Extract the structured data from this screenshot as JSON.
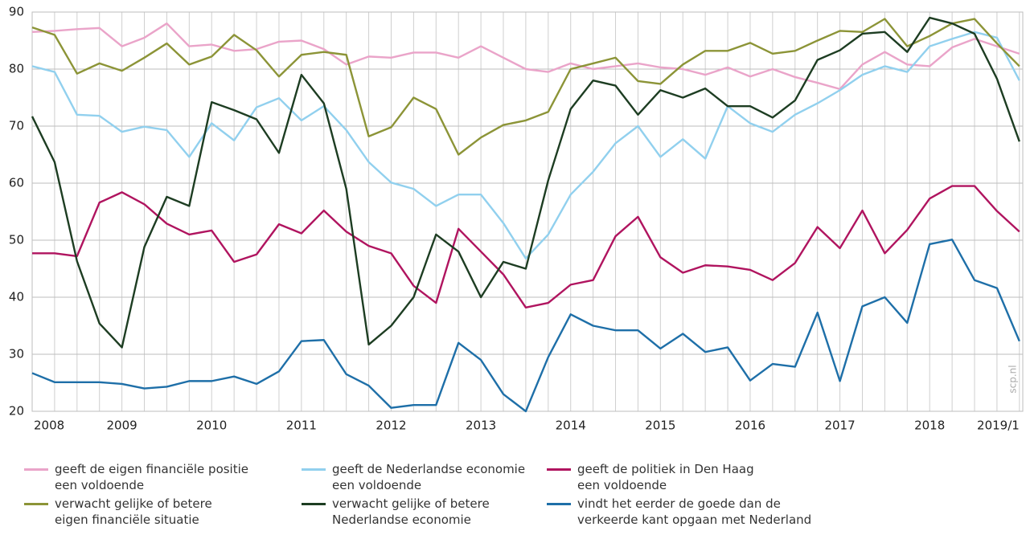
{
  "chart_data": {
    "type": "line",
    "categories": [
      "2008",
      null,
      null,
      null,
      "2009",
      null,
      null,
      null,
      "2010",
      null,
      null,
      null,
      "2011",
      null,
      null,
      null,
      "2012",
      null,
      null,
      null,
      "2013",
      null,
      null,
      null,
      "2014",
      null,
      null,
      null,
      "2015",
      null,
      null,
      null,
      "2016",
      null,
      null,
      null,
      "2017",
      null,
      null,
      null,
      "2018",
      null,
      null,
      null,
      "2019/1"
    ],
    "ylim": [
      20,
      90
    ],
    "yticks": [
      20,
      30,
      40,
      50,
      60,
      70,
      80,
      90
    ],
    "grid": true,
    "watermark": "scp.nl",
    "series": [
      {
        "name": "geeft de eigen financiële positie\neen voldoende",
        "color": "#eaa4c9",
        "values": [
          86.5,
          86.7,
          87,
          87.2,
          84,
          85.5,
          88,
          84,
          84.3,
          83.2,
          83.5,
          84.8,
          85,
          83.5,
          80.8,
          82.2,
          82,
          82.9,
          82.9,
          82,
          84,
          82,
          80,
          79.5,
          81,
          80,
          80.5,
          81,
          80.3,
          80,
          79,
          80.3,
          78.7,
          80,
          78.6,
          77.6,
          76.5,
          80.8,
          83,
          80.8,
          80.5,
          83.8,
          85.3,
          84,
          82.7
        ]
      },
      {
        "name": "geeft de Nederlandse economie\neen voldoende",
        "color": "#91d0ee",
        "values": [
          80.5,
          79.5,
          72,
          71.8,
          69,
          69.9,
          69.3,
          64.6,
          70.5,
          67.5,
          73.3,
          74.9,
          71,
          73.5,
          69.3,
          63.7,
          60.1,
          59,
          56,
          58,
          58,
          53,
          46.8,
          51,
          58,
          62,
          67,
          70,
          64.6,
          67.7,
          64.3,
          73.5,
          70.5,
          69,
          72,
          74,
          76.3,
          79,
          80.5,
          79.5,
          84,
          85.3,
          86.5,
          85.5,
          78
        ]
      },
      {
        "name": "geeft de politiek in Den Haag\neen voldoende",
        "color": "#b0145f",
        "values": [
          47.7,
          47.7,
          47.2,
          56.6,
          58.4,
          56.3,
          52.9,
          51,
          51.7,
          46.2,
          47.5,
          52.8,
          51.2,
          55.2,
          51.5,
          49,
          47.7,
          42,
          39,
          52,
          48,
          44,
          38.2,
          39,
          42.2,
          43,
          50.7,
          54.1,
          47,
          44.3,
          45.6,
          45.4,
          44.8,
          43,
          46,
          52.3,
          48.6,
          55.2,
          47.7,
          51.8,
          57.3,
          59.5,
          59.5,
          55.1,
          51.5
        ]
      },
      {
        "name": "verwacht gelijke of betere\neigen financiële situatie",
        "color": "#8c9437",
        "values": [
          87.3,
          86,
          79.2,
          81,
          79.7,
          82,
          84.5,
          80.8,
          82.2,
          86,
          83.3,
          78.7,
          82.5,
          83,
          82.5,
          68.2,
          69.8,
          75,
          73,
          65,
          68,
          70.2,
          71,
          72.5,
          80,
          81,
          82,
          77.9,
          77.4,
          80.8,
          83.2,
          83.2,
          84.6,
          82.7,
          83.2,
          85,
          86.7,
          86.5,
          88.8,
          84,
          85.8,
          88,
          88.8,
          84.5,
          80.5
        ]
      },
      {
        "name": "verwacht gelijke of betere\nNederlandse economie",
        "color": "#1d3d22",
        "values": [
          71.7,
          63.7,
          46.3,
          35.4,
          31.2,
          48.8,
          57.6,
          56,
          74.2,
          72.8,
          71.2,
          65.3,
          79,
          74,
          59,
          31.7,
          35,
          40,
          51,
          48,
          40,
          46.2,
          45,
          60.5,
          73,
          78,
          77.1,
          72,
          76.3,
          75,
          76.6,
          73.5,
          73.5,
          71.5,
          74.5,
          81.6,
          83.3,
          86.2,
          86.5,
          83,
          89,
          88,
          86.2,
          78.3,
          67.3
        ]
      },
      {
        "name": "vindt het eerder de goede dan de\nverkeerde kant opgaan met Nederland",
        "color": "#1e6fa8",
        "values": [
          26.7,
          25.1,
          25.1,
          25.1,
          24.8,
          24,
          24.3,
          25.3,
          25.3,
          26.1,
          24.8,
          27,
          32.3,
          32.5,
          26.5,
          24.5,
          20.6,
          21.1,
          21.1,
          32,
          29,
          23,
          20,
          29.5,
          37,
          35,
          34.2,
          34.2,
          31,
          33.6,
          30.4,
          31.2,
          25.4,
          28.3,
          27.8,
          37.3,
          25.3,
          38.4,
          40,
          35.5,
          49.3,
          50.1,
          43,
          41.6,
          32.3
        ]
      }
    ]
  }
}
